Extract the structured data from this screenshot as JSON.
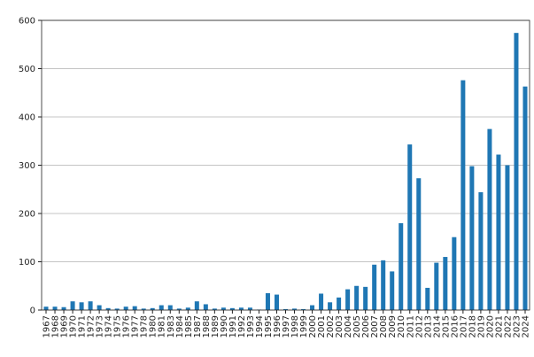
{
  "chart_data": {
    "type": "bar",
    "categories": [
      "1967",
      "1968",
      "1969",
      "1970",
      "1971",
      "1972",
      "1973",
      "1974",
      "1975",
      "1976",
      "1977",
      "1978",
      "1980",
      "1981",
      "1983",
      "1984",
      "1985",
      "1987",
      "1988",
      "1989",
      "1990",
      "1991",
      "1992",
      "1993",
      "1994",
      "1995",
      "1996",
      "1997",
      "1998",
      "1999",
      "2000",
      "2001",
      "2002",
      "2003",
      "2004",
      "2005",
      "2006",
      "2007",
      "2008",
      "2009",
      "2010",
      "2011",
      "2012",
      "2013",
      "2014",
      "2015",
      "2016",
      "2017",
      "2018",
      "2019",
      "2020",
      "2021",
      "2022",
      "2023",
      "2024"
    ],
    "values": [
      7,
      7,
      6,
      18,
      16,
      18,
      10,
      4,
      3,
      7,
      8,
      3,
      4,
      10,
      10,
      3,
      5,
      18,
      12,
      3,
      5,
      4,
      5,
      5,
      1,
      35,
      32,
      2,
      3,
      2,
      10,
      34,
      16,
      26,
      43,
      50,
      48,
      94,
      103,
      80,
      180,
      343,
      273,
      46,
      98,
      110,
      151,
      476,
      298,
      244,
      375,
      322,
      300,
      574,
      463
    ],
    "color": "#1f77b4",
    "ylim": [
      0,
      600
    ],
    "yticks": [
      0,
      100,
      200,
      300,
      400,
      500,
      600
    ],
    "grid": true
  }
}
